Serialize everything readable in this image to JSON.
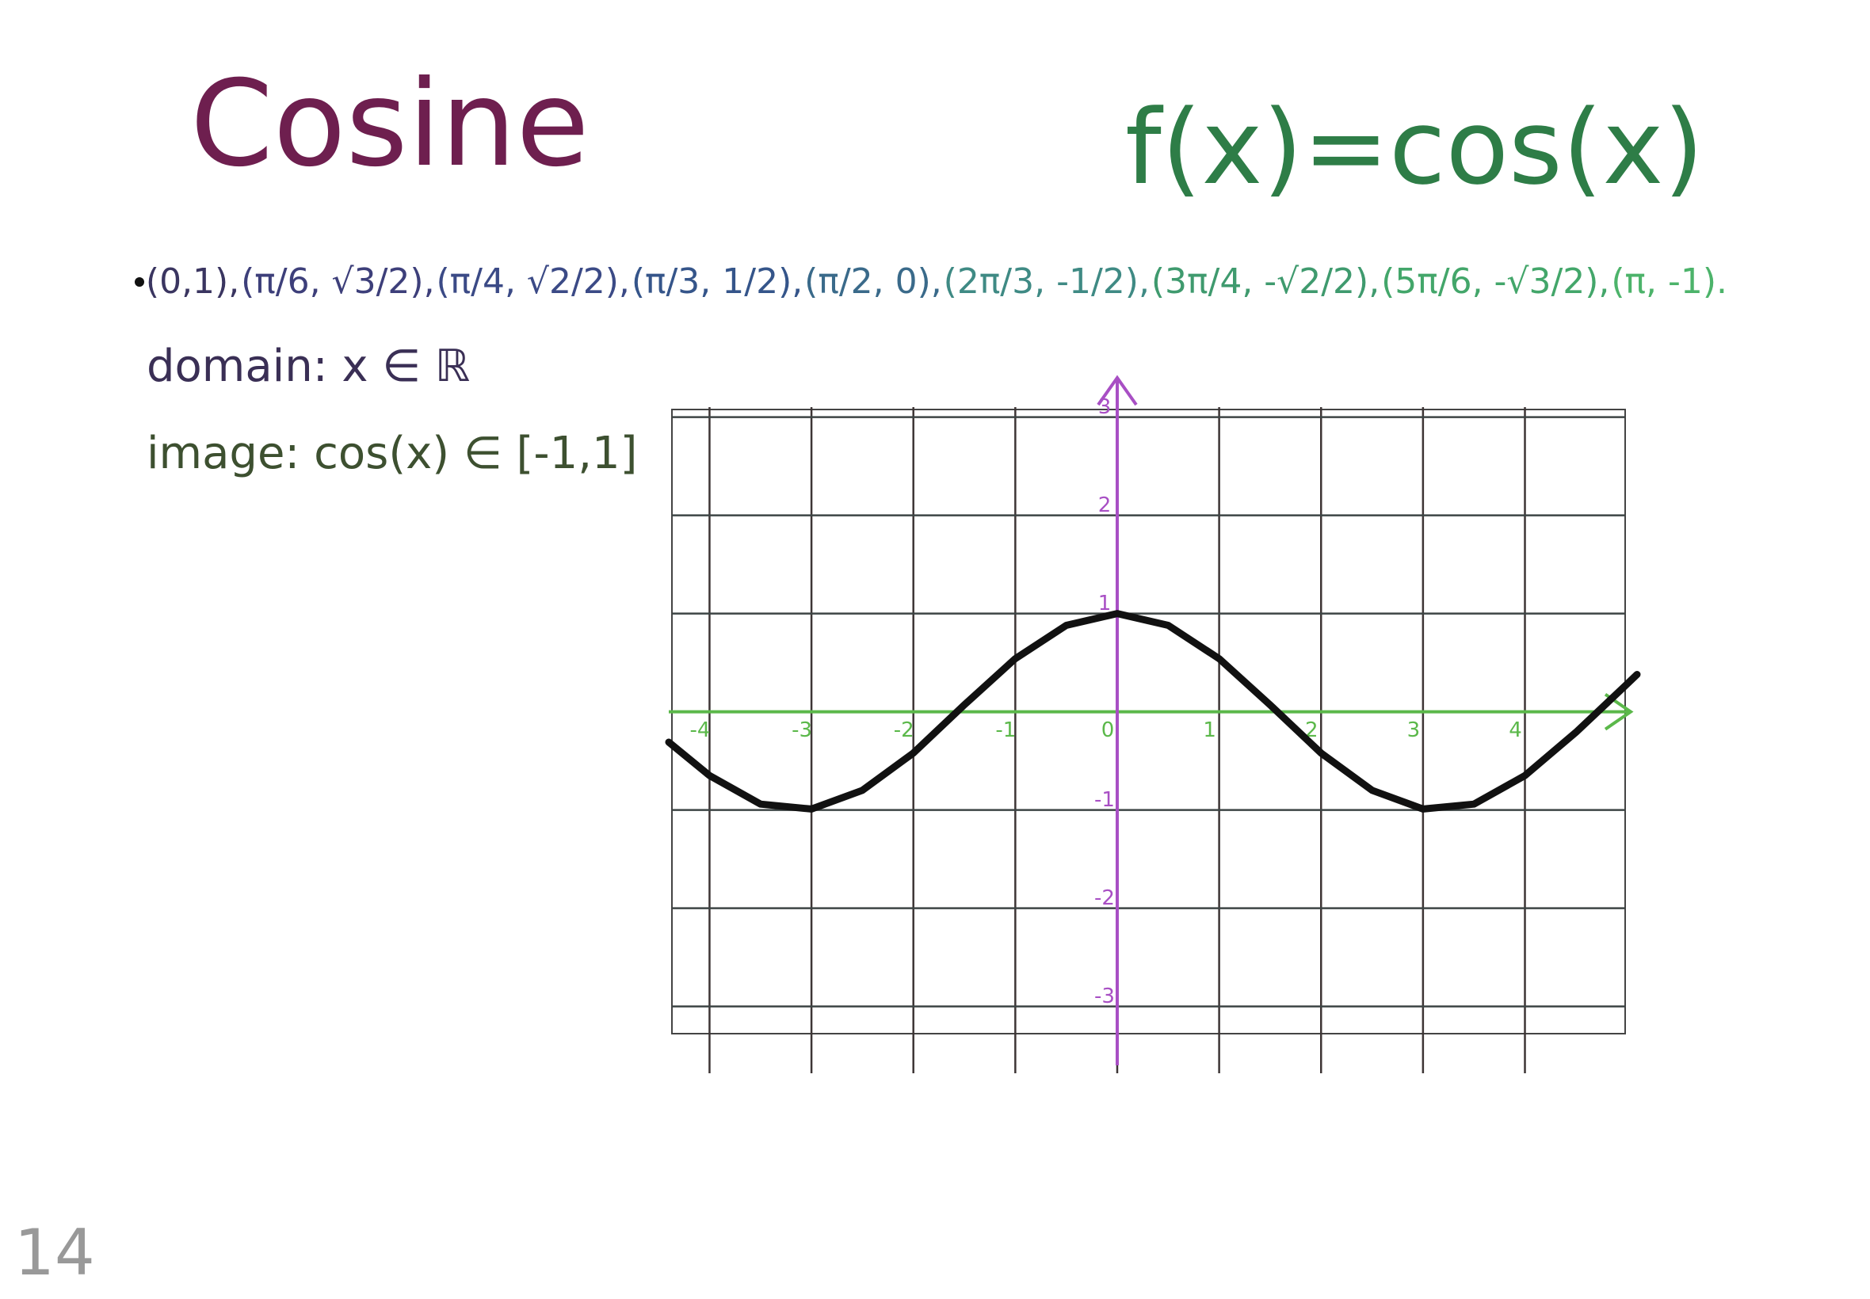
{
  "title": "Cosine",
  "formula": "f(x)=cos(x)",
  "points": [
    {
      "text": "(0,1),",
      "color": "#3a3560"
    },
    {
      "text": "(π/6, √3/2),",
      "color": "#3d3f7a"
    },
    {
      "text": "(π/4, √2/2),",
      "color": "#3b4a86"
    },
    {
      "text": "(π/3, 1/2),",
      "color": "#35558a"
    },
    {
      "text": "(π/2, 0),",
      "color": "#3a6a8a"
    },
    {
      "text": "(2π/3, -1/2),",
      "color": "#3f8a84"
    },
    {
      "text": "(3π/4, -√2/2),",
      "color": "#3f9a6e"
    },
    {
      "text": "(5π/6, -√3/2),",
      "color": "#43a66a"
    },
    {
      "text": "(π, -1).",
      "color": "#4cb36a"
    }
  ],
  "domain": "domain: x ∈ ℝ",
  "image": "image: cos(x) ∈ [-1,1]",
  "page_number": "14",
  "chart_data": {
    "type": "line",
    "x": [
      -4.4,
      -4,
      -3.5,
      -3,
      -2.5,
      -2,
      -1.5,
      -1,
      -0.5,
      0,
      0.5,
      1,
      1.5,
      2,
      2.5,
      3,
      3.5,
      4,
      4.5,
      5,
      5.1
    ],
    "series": [
      {
        "color": "#111111",
        "values": [
          -0.31,
          -0.65,
          -0.94,
          -0.99,
          -0.8,
          -0.42,
          0.07,
          0.54,
          0.88,
          1,
          0.88,
          0.54,
          0.07,
          -0.42,
          -0.8,
          -0.99,
          -0.94,
          -0.65,
          -0.21,
          0.28,
          0.38
        ]
      }
    ],
    "xlim": [
      -4.4,
      5.1
    ],
    "ylim": [
      -3.6,
      3.4
    ],
    "xticks": [
      -4,
      -3,
      -2,
      -1,
      0,
      1,
      2,
      3,
      4
    ],
    "yticks": [
      -3,
      -2,
      -1,
      1,
      2,
      3
    ],
    "grid": true,
    "x_axis_color": "#5bb84a",
    "y_axis_color": "#a84fc4"
  }
}
